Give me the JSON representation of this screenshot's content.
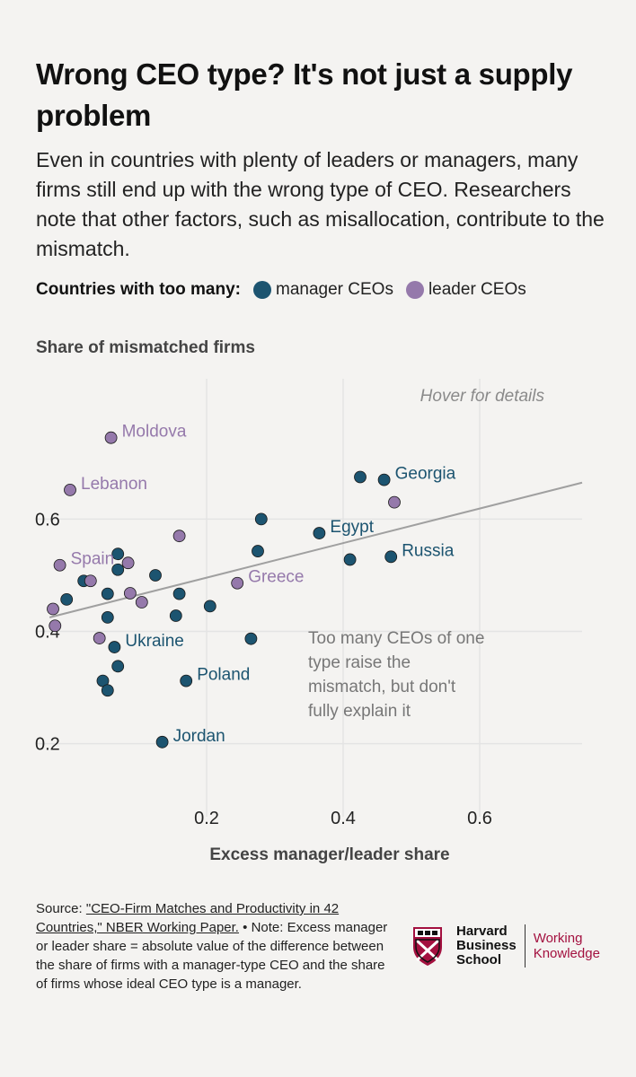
{
  "title": "Wrong CEO type? It's not just a supply problem",
  "subtitle": "Even in countries with plenty of leaders or managers, many firms still end up with the wrong type of CEO. Researchers note that other factors, such as misallocation, contribute to the mismatch.",
  "legend": {
    "lead": "Countries with too many:",
    "manager": "manager CEOs",
    "leader": "leader CEOs"
  },
  "colors": {
    "manager": "#1c5470",
    "leader": "#9579ab",
    "trend": "#a0a0a0",
    "grid": "#e4e4e4",
    "annotation": "#777777"
  },
  "chart_data": {
    "type": "scatter",
    "title": "",
    "ylabel": "Share of mismatched firms",
    "xlabel": "Excess manager/leader share",
    "xlim": [
      -0.05,
      0.75
    ],
    "ylim": [
      0.07,
      0.85
    ],
    "xticks": [
      0.2,
      0.4,
      0.6
    ],
    "yticks": [
      0.2,
      0.4,
      0.6
    ],
    "xtick_labels": [
      "0.2",
      "0.4",
      "0.6"
    ],
    "ytick_labels": [
      "0.2",
      "0.4",
      "0.6"
    ],
    "hover_note": "Hover for details",
    "annotation": "Too many CEOs of one type raise the mismatch, but don't fully explain it",
    "trendline": {
      "x1": -0.03,
      "y1": 0.425,
      "x2": 0.75,
      "y2": 0.665
    },
    "series": [
      {
        "name": "manager CEOs",
        "points": [
          {
            "x": 0.125,
            "y": 0.5,
            "label": ""
          },
          {
            "x": 0.425,
            "y": 0.675,
            "label": ""
          },
          {
            "x": 0.46,
            "y": 0.67,
            "label": "Georgia"
          },
          {
            "x": 0.28,
            "y": 0.6,
            "label": ""
          },
          {
            "x": 0.365,
            "y": 0.575,
            "label": "Egypt"
          },
          {
            "x": 0.275,
            "y": 0.543,
            "label": ""
          },
          {
            "x": 0.41,
            "y": 0.528,
            "label": ""
          },
          {
            "x": 0.47,
            "y": 0.533,
            "label": "Russia"
          },
          {
            "x": 0.07,
            "y": 0.538,
            "label": ""
          },
          {
            "x": 0.07,
            "y": 0.51,
            "label": ""
          },
          {
            "x": 0.02,
            "y": 0.49,
            "label": ""
          },
          {
            "x": 0.055,
            "y": 0.467,
            "label": ""
          },
          {
            "x": -0.005,
            "y": 0.457,
            "label": ""
          },
          {
            "x": 0.16,
            "y": 0.467,
            "label": ""
          },
          {
            "x": 0.205,
            "y": 0.445,
            "label": ""
          },
          {
            "x": 0.155,
            "y": 0.428,
            "label": ""
          },
          {
            "x": 0.055,
            "y": 0.425,
            "label": ""
          },
          {
            "x": 0.265,
            "y": 0.387,
            "label": ""
          },
          {
            "x": 0.065,
            "y": 0.372,
            "label": "Ukraine"
          },
          {
            "x": 0.07,
            "y": 0.338,
            "label": ""
          },
          {
            "x": 0.048,
            "y": 0.312,
            "label": ""
          },
          {
            "x": 0.055,
            "y": 0.295,
            "label": ""
          },
          {
            "x": 0.17,
            "y": 0.312,
            "label": "Poland"
          },
          {
            "x": 0.135,
            "y": 0.203,
            "label": "Jordan"
          }
        ]
      },
      {
        "name": "leader CEOs",
        "points": [
          {
            "x": 0.06,
            "y": 0.745,
            "label": "Moldova"
          },
          {
            "x": 0.0,
            "y": 0.652,
            "label": "Lebanon"
          },
          {
            "x": 0.475,
            "y": 0.63,
            "label": ""
          },
          {
            "x": 0.16,
            "y": 0.57,
            "label": ""
          },
          {
            "x": -0.015,
            "y": 0.518,
            "label": "Spain"
          },
          {
            "x": 0.085,
            "y": 0.522,
            "label": ""
          },
          {
            "x": 0.03,
            "y": 0.49,
            "label": ""
          },
          {
            "x": 0.245,
            "y": 0.486,
            "label": "Greece"
          },
          {
            "x": 0.088,
            "y": 0.468,
            "label": ""
          },
          {
            "x": 0.105,
            "y": 0.452,
            "label": ""
          },
          {
            "x": -0.025,
            "y": 0.44,
            "label": ""
          },
          {
            "x": -0.022,
            "y": 0.41,
            "label": ""
          },
          {
            "x": 0.043,
            "y": 0.388,
            "label": ""
          }
        ]
      }
    ]
  },
  "footer": {
    "source_prefix": "Source: ",
    "source_link": "\"CEO-Firm Matches and Productivity in 42 Countries,\" NBER Working Paper.",
    "note": " • Note: Excess manager or leader share = absolute value of the difference between the share of firms with a manager-type CEO and the share of firms whose ideal CEO type is a manager.",
    "logo_hbs": [
      "Harvard",
      "Business",
      "School"
    ],
    "logo_wk": [
      "Working",
      "Knowledge"
    ]
  }
}
